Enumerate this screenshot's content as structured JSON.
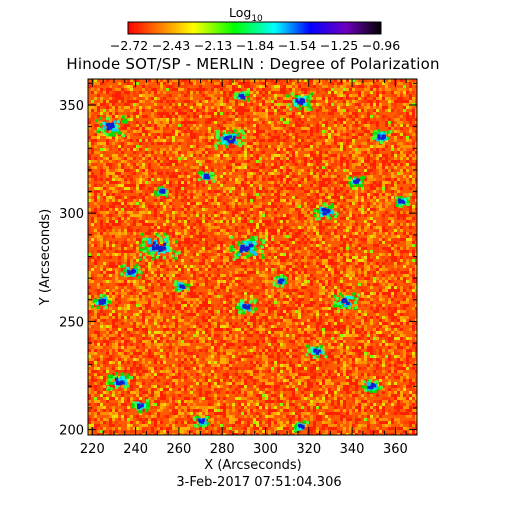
{
  "title": "Hinode SOT/SP - MERLIN : Degree of Polarization",
  "colorbar": {
    "title_main": "Log",
    "title_sub": "10",
    "tick_labels": [
      "−2.72",
      "−2.43",
      "−2.13",
      "−1.84",
      "−1.54",
      "−1.25",
      "−0.96"
    ],
    "range": [
      -2.72,
      -0.96
    ]
  },
  "x_axis": {
    "label": "X (Arcseconds)",
    "range": [
      218,
      370
    ],
    "ticks": [
      {
        "value": 220,
        "label": "220"
      },
      {
        "value": 240,
        "label": "240"
      },
      {
        "value": 260,
        "label": "260"
      },
      {
        "value": 280,
        "label": "280"
      },
      {
        "value": 300,
        "label": "300"
      },
      {
        "value": 320,
        "label": "320"
      },
      {
        "value": 340,
        "label": "340"
      },
      {
        "value": 360,
        "label": "360"
      }
    ]
  },
  "y_axis": {
    "label": "Y (Arcseconds)",
    "range": [
      197.5,
      362
    ],
    "ticks": [
      {
        "value": 200,
        "label": "200"
      },
      {
        "value": 250,
        "label": "250"
      },
      {
        "value": 300,
        "label": "300"
      },
      {
        "value": 350,
        "label": "350"
      }
    ]
  },
  "timestamp": "3-Feb-2017 07:51:04.306",
  "colors": {
    "background_field": "#ff5a00",
    "colormap": [
      "#ff0000",
      "#ff7f00",
      "#ffff00",
      "#00ff00",
      "#00ffff",
      "#0000ff",
      "#8b00ff",
      "#000000"
    ]
  }
}
